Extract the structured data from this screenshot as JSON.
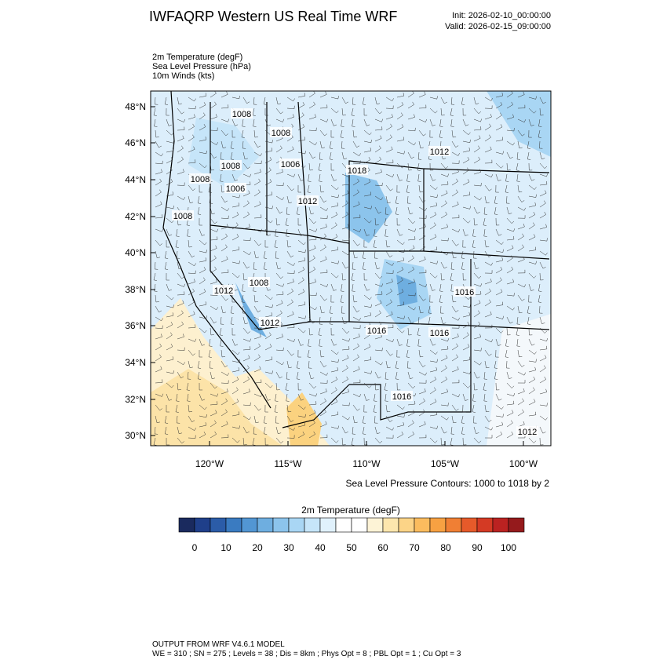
{
  "header": {
    "title": "IWFAQRP Western US Real Time WRF",
    "init": "Init: 2026-02-10_00:00:00",
    "valid": "Valid: 2026-02-15_09:00:00"
  },
  "fields": [
    "2m Temperature   (degF)",
    "Sea Level Pressure   (hPa)",
    "10m Winds   (kts)"
  ],
  "map": {
    "lat_labels": [
      "48°N",
      "46°N",
      "44°N",
      "42°N",
      "40°N",
      "38°N",
      "36°N",
      "34°N",
      "32°N",
      "30°N"
    ],
    "lon_labels": [
      "120°W",
      "115°W",
      "110°W",
      "105°W",
      "100°W"
    ],
    "contour_labels": [
      "1008",
      "1008",
      "1008",
      "1006",
      "1008",
      "1006",
      "1008",
      "1012",
      "1018",
      "1012",
      "1008",
      "1012",
      "1012",
      "1016",
      "1016",
      "1016",
      "1016",
      "1012"
    ],
    "contour_note": "Sea Level Pressure Contours: 1000 to 1018 by 2"
  },
  "colorbar": {
    "title": "2m Temperature  (degF)",
    "colors": [
      "#1a2a5e",
      "#1f3f8a",
      "#2b5ca8",
      "#3a7bc1",
      "#5296d3",
      "#6eaee0",
      "#8cc4ec",
      "#a9d6f4",
      "#c6e5f9",
      "#e0f1fc",
      "#ffffff",
      "#ffffff",
      "#fdf3d6",
      "#fde6ad",
      "#fcd487",
      "#fbbc5e",
      "#f7a142",
      "#f07f34",
      "#e65a2a",
      "#d43a24",
      "#bb2221",
      "#951a1c"
    ],
    "ticks": [
      0,
      10,
      20,
      30,
      40,
      50,
      60,
      70,
      80,
      90,
      100
    ]
  },
  "footer": [
    "OUTPUT FROM WRF V4.6.1 MODEL",
    "WE = 310 ; SN = 275 ; Levels = 38 ; Dis = 8km ; Phys Opt = 8 ; PBL Opt = 1 ; Cu Opt = 3"
  ]
}
